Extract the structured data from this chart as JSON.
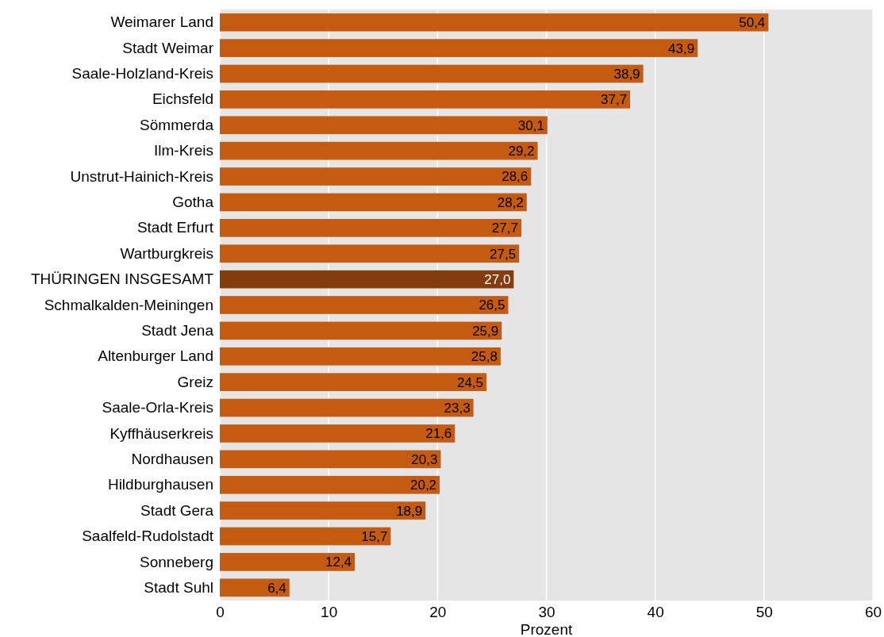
{
  "chart_data": {
    "type": "bar",
    "orientation": "horizontal",
    "xlabel": "Prozent",
    "categories": [
      "Weimarer Land",
      "Stadt Weimar",
      "Saale-Holzland-Kreis",
      "Eichsfeld",
      "Sömmerda",
      "Ilm-Kreis",
      "Unstrut-Hainich-Kreis",
      "Gotha",
      "Stadt Erfurt",
      "Wartburgkreis",
      "THÜRINGEN INSGESAMT",
      "Schmalkalden-Meiningen",
      "Stadt Jena",
      "Altenburger Land",
      "Greiz",
      "Saale-Orla-Kreis",
      "Kyffhäuserkreis",
      "Nordhausen",
      "Hildburghausen",
      "Stadt Gera",
      "Saalfeld-Rudolstadt",
      "Sonneberg",
      "Stadt Suhl"
    ],
    "values": [
      50.4,
      43.9,
      38.9,
      37.7,
      30.1,
      29.2,
      28.6,
      28.2,
      27.7,
      27.5,
      27.0,
      26.5,
      25.9,
      25.8,
      24.5,
      23.3,
      21.6,
      20.3,
      20.2,
      18.9,
      15.7,
      12.4,
      6.4
    ],
    "colors": [
      "#c55a11",
      "#c55a11",
      "#c55a11",
      "#c55a11",
      "#c55a11",
      "#c55a11",
      "#c55a11",
      "#c55a11",
      "#c55a11",
      "#c55a11",
      "#843c0c",
      "#c55a11",
      "#c55a11",
      "#c55a11",
      "#c55a11",
      "#c55a11",
      "#c55a11",
      "#c55a11",
      "#c55a11",
      "#c55a11",
      "#c55a11",
      "#c55a11",
      "#c55a11"
    ],
    "value_labels": [
      "50,4",
      "43,9",
      "38,9",
      "37,7",
      "30,1",
      "29,2",
      "28,6",
      "28,2",
      "27,7",
      "27,5",
      "27,0",
      "26,5",
      "25,9",
      "25,8",
      "24,5",
      "23,3",
      "21,6",
      "20,3",
      "20,2",
      "18,9",
      "15,7",
      "12,4",
      "6,4"
    ],
    "xlim": [
      0,
      60
    ],
    "xticks": [
      0,
      10,
      20,
      30,
      40,
      50,
      60
    ],
    "grid": "x"
  }
}
